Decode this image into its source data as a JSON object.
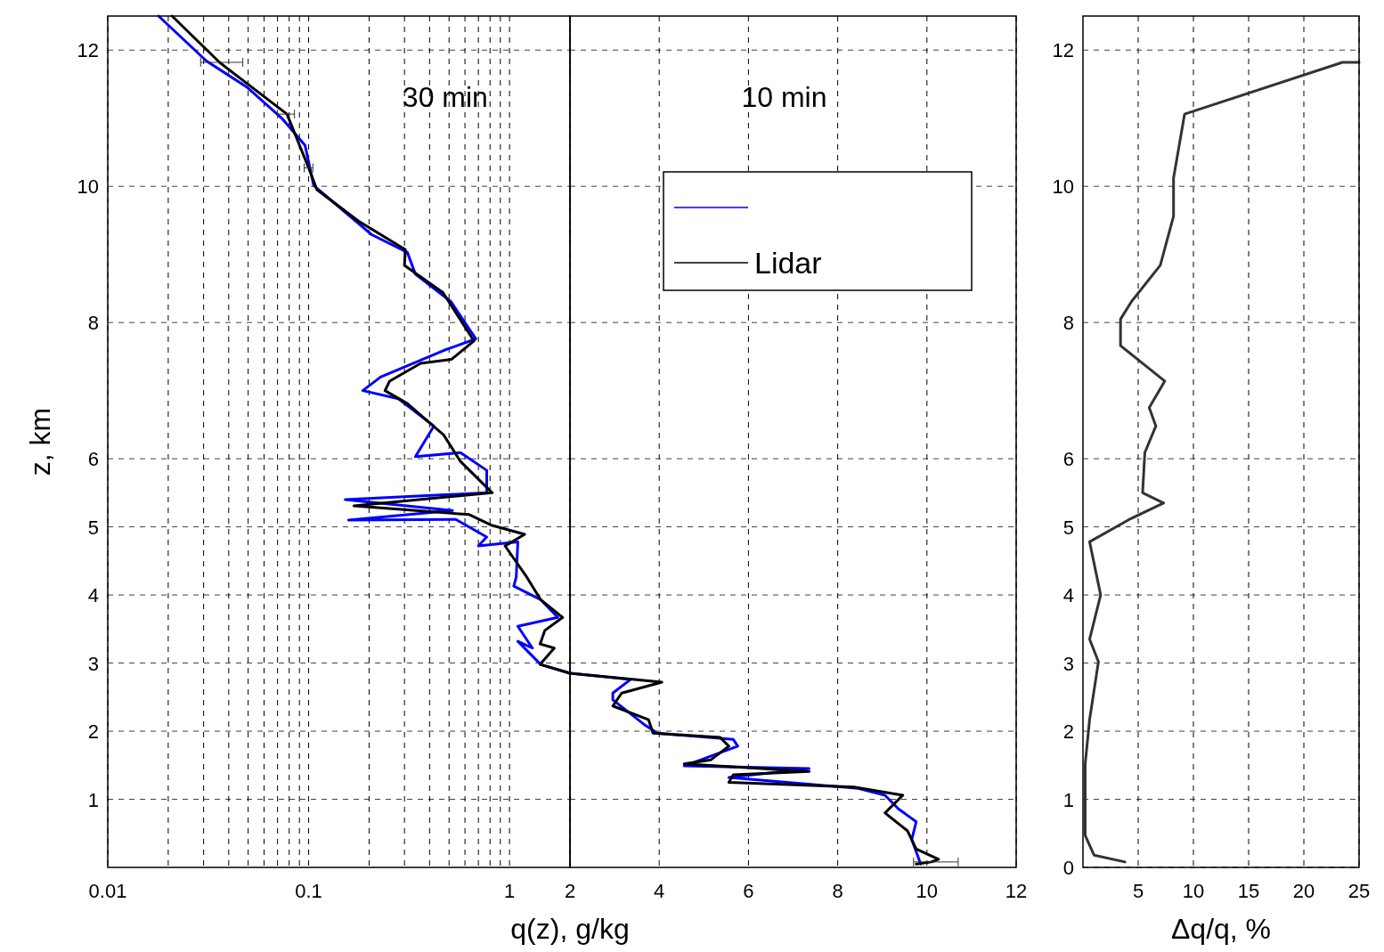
{
  "chart_data": [
    {
      "type": "line",
      "xlabel": "q(z), g/kg",
      "ylabel": "z, km",
      "log": "x",
      "xlim": [
        0.01,
        2
      ],
      "ylim": [
        0,
        12.5
      ],
      "xticks": [
        0.01,
        {
          "value": 0.02,
          "label": null
        },
        {
          "value": 0.03,
          "label": null
        },
        {
          "value": 0.04,
          "label": null
        },
        {
          "value": 0.05,
          "label": null
        },
        {
          "value": 0.06,
          "label": null
        },
        {
          "value": 0.07,
          "label": null
        },
        {
          "value": 0.08,
          "label": null
        },
        {
          "value": 0.09,
          "label": null
        },
        0.1,
        {
          "value": 0.2,
          "label": null
        },
        {
          "value": 0.3,
          "label": null
        },
        {
          "value": 0.4,
          "label": null
        },
        {
          "value": 0.5,
          "label": null
        },
        {
          "value": 0.6,
          "label": null
        },
        {
          "value": 0.7,
          "label": null
        },
        {
          "value": 0.8,
          "label": null
        },
        {
          "value": 0.9,
          "label": null
        },
        1,
        {
          "value": 2,
          "label": null
        }
      ],
      "yticks": [
        1,
        2,
        3,
        4,
        5,
        6,
        8,
        10,
        12
      ],
      "grid": true,
      "annotations": [
        "30 min"
      ],
      "series": [
        {
          "color": "#0000ff",
          "x": [
            0.0179,
            0.031,
            0.0496,
            0.074,
            0.096,
            0.106,
            0.152,
            0.206,
            0.31,
            0.34,
            0.51,
            0.68,
            0.47,
            0.228,
            0.186,
            0.28,
            0.42,
            0.34,
            0.57,
            0.77,
            0.77,
            0.152,
            0.52,
            0.158,
            0.54,
            0.77,
            0.7,
            1.1,
            1.08,
            1.05,
            1.43,
            1.74,
            1.1,
            1.3,
            1.1,
            1.43,
            2.0
          ],
          "values": [
            12.5,
            11.84,
            11.45,
            10.99,
            10.6,
            10.01,
            9.62,
            9.29,
            9.03,
            8.71,
            8.31,
            7.76,
            7.59,
            7.2,
            7.0,
            6.88,
            6.48,
            6.03,
            6.09,
            5.83,
            5.5,
            5.4,
            5.24,
            5.1,
            5.11,
            4.85,
            4.72,
            4.78,
            4.26,
            4.13,
            3.93,
            3.67,
            3.54,
            3.22,
            3.32,
            2.98,
            2.85
          ]
        },
        {
          "color": "#000000",
          "x": [
            0.0209,
            0.036,
            0.078,
            0.1,
            0.11,
            0.177,
            0.303,
            0.3,
            0.466,
            0.665,
            0.515,
            0.361,
            0.253,
            0.24,
            0.31,
            0.47,
            0.57,
            0.82,
            0.168,
            0.63,
            0.82,
            1.19,
            0.95,
            1.22,
            1.43,
            1.84,
            1.5,
            1.42,
            1.67,
            1.42,
            2.0
          ],
          "values": [
            12.5,
            11.82,
            11.06,
            10.27,
            9.95,
            9.49,
            9.07,
            8.84,
            8.44,
            7.73,
            7.46,
            7.4,
            7.14,
            7.0,
            6.81,
            6.35,
            5.96,
            5.5,
            5.31,
            5.18,
            5.02,
            4.89,
            4.72,
            4.26,
            3.93,
            3.67,
            3.48,
            3.28,
            3.22,
            2.98,
            2.85
          ],
          "xerrors": [
            null,
            [
              0.029,
              0.047
            ],
            [
              0.07,
              0.085
            ],
            [
              0.095,
              0.105
            ],
            null,
            null,
            null,
            null,
            null,
            null,
            null,
            null,
            null,
            null,
            null,
            null,
            null,
            null,
            null,
            null,
            null,
            null,
            null,
            null,
            null,
            null,
            null,
            null,
            null,
            null,
            null
          ]
        }
      ]
    },
    {
      "type": "line",
      "xlim": [
        2,
        12
      ],
      "ylim": [
        0,
        12.5
      ],
      "xticks": [
        2,
        4,
        6,
        8,
        10,
        12
      ],
      "yticks": [
        1,
        2,
        3,
        4,
        5,
        6,
        8,
        10,
        12
      ],
      "tick_labels": "x",
      "grid": true,
      "legend": "top",
      "annotations": [
        "10 min"
      ],
      "series": [
        {
          "color": "#0000ff",
          "x": [
            2.0,
            3.36,
            2.96,
            2.96,
            3.66,
            3.96,
            5.66,
            5.76,
            4.56,
            7.36,
            5.56,
            8.46,
            9.06,
            9.36,
            9.76,
            9.66,
            9.86
          ],
          "values": [
            2.85,
            2.76,
            2.56,
            2.46,
            2.1,
            1.97,
            1.88,
            1.78,
            1.49,
            1.45,
            1.32,
            1.16,
            1.06,
            0.86,
            0.67,
            0.41,
            0.05
          ]
        },
        {
          "name": "Lidar",
          "color": "#000000",
          "x": [
            2.0,
            4.06,
            3.16,
            2.96,
            3.76,
            3.86,
            5.36,
            5.56,
            5.16,
            4.56,
            7.36,
            5.66,
            5.56,
            8.36,
            9.46,
            9.06,
            9.56,
            9.76,
            10.26,
            10.1,
            9.76
          ],
          "values": [
            2.85,
            2.72,
            2.56,
            2.37,
            2.17,
            1.97,
            1.91,
            1.78,
            1.58,
            1.52,
            1.41,
            1.36,
            1.25,
            1.18,
            1.06,
            0.8,
            0.54,
            0.27,
            0.12,
            0.08,
            0.05
          ],
          "xerrors": [
            null,
            null,
            null,
            null,
            null,
            null,
            null,
            null,
            null,
            null,
            null,
            null,
            null,
            null,
            null,
            null,
            null,
            null,
            null,
            [
              9.7,
              10.7
            ],
            null
          ]
        }
      ]
    },
    {
      "type": "line",
      "xlabel": "Δq/q, %",
      "xlim": [
        0,
        25
      ],
      "ylim": [
        0,
        12.5
      ],
      "xticks": [
        5,
        10,
        15,
        20,
        25
      ],
      "yticks": [
        0,
        1,
        2,
        3,
        4,
        5,
        6,
        8,
        10,
        12
      ],
      "grid": true,
      "series": [
        {
          "color": "#333333",
          "x": [
            25,
            23.5,
            9.2,
            8.2,
            8.2,
            7.0,
            4.4,
            3.4,
            3.4,
            7.4,
            6.0,
            6.6,
            5.6,
            5.4,
            7.3,
            4.2,
            0.6,
            1.6,
            0.6,
            1.4,
            0.6,
            0.2,
            0.2,
            1.0,
            3.8
          ],
          "values": [
            11.82,
            11.82,
            11.06,
            10.12,
            9.56,
            8.84,
            8.31,
            8.05,
            7.66,
            7.14,
            6.75,
            6.48,
            6.09,
            5.5,
            5.35,
            5.11,
            4.78,
            4.0,
            3.35,
            3.02,
            2.17,
            1.52,
            0.47,
            0.18,
            0.08
          ]
        }
      ]
    }
  ]
}
